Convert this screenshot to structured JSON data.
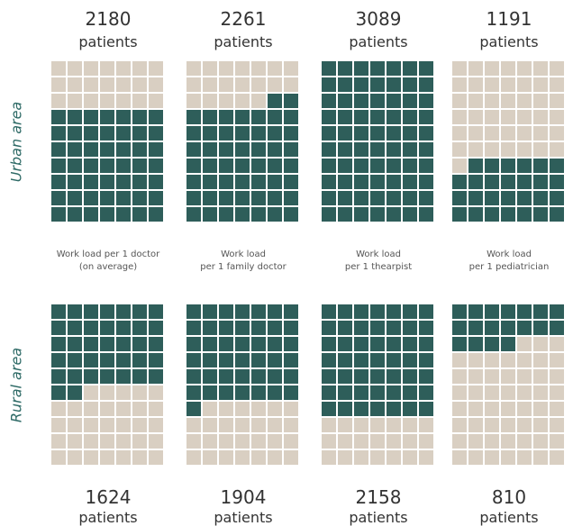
{
  "chart_data": {
    "type": "waffle",
    "categories": [
      "Work load per 1 doctor\n(on average)",
      "Work load\nper 1 family doctor",
      "Work load\nper 1 thearpist",
      "Work load\nper 1 pediatrician"
    ],
    "unit": "patients",
    "series": [
      {
        "name": "Urban area",
        "color": "#2e5e5a",
        "values": [
          2180,
          2261,
          3089,
          1191
        ]
      },
      {
        "name": "Rural area",
        "color": "#2e5e5a",
        "values": [
          1624,
          1904,
          2158,
          810
        ]
      }
    ],
    "empty_color": "#d9cfc2"
  }
}
